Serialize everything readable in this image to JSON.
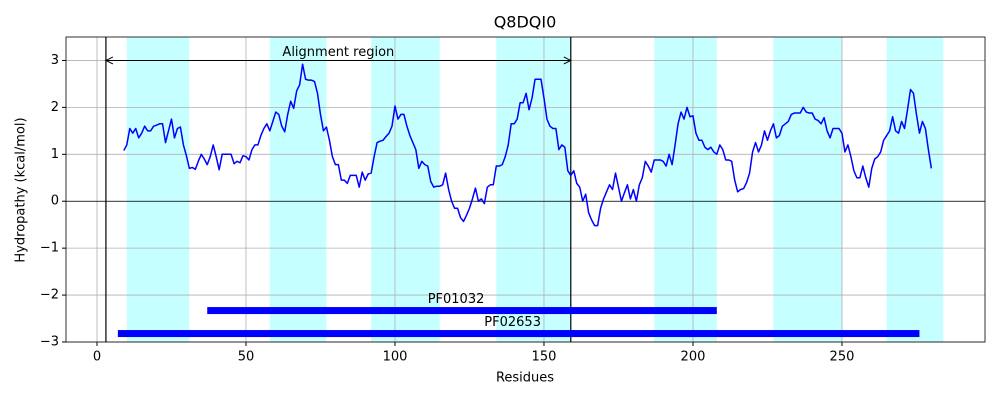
{
  "chart_data": {
    "type": "line",
    "title": "Q8DQI0",
    "x_label": "Residues",
    "y_label": "Hydropathy (kcal/mol)",
    "x": [
      9,
      10,
      11,
      12,
      13,
      14,
      15,
      16,
      17,
      18,
      19,
      20,
      21,
      22,
      23,
      24,
      25,
      26,
      27,
      28,
      29,
      30,
      31,
      32,
      33,
      34,
      35,
      36,
      37,
      38,
      39,
      40,
      41,
      42,
      43,
      44,
      45,
      46,
      47,
      48,
      49,
      50,
      51,
      52,
      53,
      54,
      55,
      56,
      57,
      58,
      59,
      60,
      61,
      62,
      63,
      64,
      65,
      66,
      67,
      68,
      69,
      70,
      71,
      72,
      73,
      74,
      75,
      76,
      77,
      78,
      79,
      80,
      81,
      82,
      83,
      84,
      85,
      86,
      87,
      88,
      89,
      90,
      91,
      92,
      93,
      94,
      95,
      96,
      97,
      98,
      99,
      100,
      101,
      102,
      103,
      104,
      105,
      106,
      107,
      108,
      109,
      110,
      111,
      112,
      113,
      114,
      115,
      116,
      117,
      118,
      119,
      120,
      121,
      122,
      123,
      124,
      125,
      126,
      127,
      128,
      129,
      130,
      131,
      132,
      133,
      134,
      135,
      136,
      137,
      138,
      139,
      140,
      141,
      142,
      143,
      144,
      145,
      146,
      147,
      148,
      149,
      150,
      151,
      152,
      153,
      154,
      155,
      156,
      157,
      158,
      159,
      160,
      161,
      162,
      163,
      164,
      165,
      166,
      167,
      168,
      169,
      170,
      171,
      172,
      173,
      174,
      175,
      176,
      177,
      178,
      179,
      180,
      181,
      182,
      183,
      184,
      185,
      186,
      187,
      188,
      189,
      190,
      191,
      192,
      193,
      194,
      195,
      196,
      197,
      198,
      199,
      200,
      201,
      202,
      203,
      204,
      205,
      206,
      207,
      208,
      209,
      210,
      211,
      212,
      213,
      214,
      215,
      216,
      217,
      218,
      219,
      220,
      221,
      222,
      223,
      224,
      225,
      226,
      227,
      228,
      229,
      230,
      231,
      232,
      233,
      234,
      235,
      236,
      237,
      238,
      239,
      240,
      241,
      242,
      243,
      244,
      245,
      246,
      247,
      248,
      249,
      250,
      251,
      252,
      253,
      254,
      255,
      256,
      257,
      258,
      259,
      260,
      261,
      262,
      263,
      264,
      265,
      266,
      267,
      268,
      269,
      270,
      271,
      272,
      273,
      274,
      275,
      276,
      277,
      278,
      279,
      280
    ],
    "series": [
      {
        "color": "#0000ff",
        "values": [
          1.08,
          1.2,
          1.55,
          1.45,
          1.55,
          1.35,
          1.45,
          1.6,
          1.5,
          1.5,
          1.6,
          1.62,
          1.65,
          1.65,
          1.25,
          1.5,
          1.75,
          1.35,
          1.55,
          1.58,
          1.2,
          0.97,
          0.7,
          0.72,
          0.68,
          0.85,
          1.0,
          0.9,
          0.78,
          0.95,
          1.2,
          0.95,
          0.67,
          1.0,
          1.0,
          1.0,
          1.0,
          0.8,
          0.85,
          0.82,
          0.97,
          0.95,
          0.88,
          1.1,
          1.2,
          1.2,
          1.4,
          1.55,
          1.65,
          1.5,
          1.7,
          1.9,
          1.85,
          1.6,
          1.48,
          1.85,
          2.13,
          1.98,
          2.35,
          2.48,
          2.92,
          2.6,
          2.58,
          2.58,
          2.55,
          2.3,
          1.85,
          1.5,
          1.58,
          1.3,
          0.95,
          0.78,
          0.78,
          0.45,
          0.45,
          0.38,
          0.55,
          0.55,
          0.55,
          0.3,
          0.62,
          0.45,
          0.58,
          0.6,
          0.95,
          1.25,
          1.28,
          1.3,
          1.38,
          1.45,
          1.6,
          2.03,
          1.75,
          1.85,
          1.85,
          1.6,
          1.4,
          1.25,
          1.1,
          0.7,
          0.85,
          0.78,
          0.75,
          0.42,
          0.3,
          0.32,
          0.32,
          0.35,
          0.6,
          0.25,
          0.0,
          -0.15,
          -0.15,
          -0.35,
          -0.43,
          -0.3,
          -0.15,
          0.05,
          0.28,
          0.0,
          0.05,
          -0.05,
          0.3,
          0.35,
          0.35,
          0.75,
          0.75,
          0.78,
          0.95,
          1.2,
          1.65,
          1.65,
          1.75,
          2.1,
          2.1,
          2.3,
          1.95,
          2.2,
          2.6,
          2.6,
          2.6,
          2.2,
          1.75,
          1.6,
          1.55,
          1.55,
          1.1,
          1.2,
          1.15,
          0.65,
          0.55,
          0.65,
          0.38,
          0.3,
          0.0,
          0.15,
          -0.25,
          -0.4,
          -0.52,
          -0.52,
          -0.15,
          0.05,
          0.2,
          0.35,
          0.25,
          0.6,
          0.3,
          0.0,
          0.18,
          0.35,
          0.05,
          0.25,
          0.0,
          0.35,
          0.5,
          0.85,
          0.75,
          0.62,
          0.88,
          0.88,
          0.88,
          0.85,
          0.75,
          1.0,
          0.78,
          1.2,
          1.65,
          1.9,
          1.75,
          2.0,
          1.8,
          1.82,
          1.45,
          1.3,
          1.3,
          1.15,
          1.1,
          1.15,
          1.05,
          1.0,
          1.2,
          1.1,
          0.88,
          0.88,
          0.85,
          0.45,
          0.2,
          0.25,
          0.27,
          0.4,
          0.6,
          1.05,
          1.25,
          1.05,
          1.2,
          1.5,
          1.3,
          1.5,
          1.65,
          1.35,
          1.4,
          1.6,
          1.65,
          1.7,
          1.85,
          1.88,
          1.88,
          1.88,
          2.0,
          1.9,
          1.88,
          1.88,
          1.75,
          1.72,
          1.65,
          1.78,
          1.5,
          1.35,
          1.55,
          1.55,
          1.55,
          1.45,
          1.05,
          1.2,
          0.95,
          0.65,
          0.5,
          0.5,
          0.75,
          0.5,
          0.3,
          0.7,
          0.9,
          0.95,
          1.05,
          1.3,
          1.4,
          1.5,
          1.8,
          1.5,
          1.45,
          1.7,
          1.55,
          1.95,
          2.38,
          2.3,
          1.85,
          1.45,
          1.7,
          1.55,
          1.1,
          0.7
        ]
      }
    ],
    "xlim": [
      -10.4,
      298
    ],
    "ylim": [
      -3,
      3.5
    ],
    "xticks": [
      0,
      50,
      100,
      150,
      200,
      250
    ],
    "yticks": [
      {
        "value": -3,
        "label": "−3"
      },
      {
        "value": -2,
        "label": "−2"
      },
      {
        "value": -1,
        "label": "−1"
      },
      0,
      1,
      2,
      3
    ],
    "grid": true,
    "hline": 0,
    "regions": [
      {
        "start": 10,
        "end": 31
      },
      {
        "start": 58,
        "end": 77
      },
      {
        "start": 92,
        "end": 115
      },
      {
        "start": 134,
        "end": 159
      },
      {
        "start": 187,
        "end": 208
      },
      {
        "start": 227,
        "end": 250
      },
      {
        "start": 265,
        "end": 284
      }
    ],
    "region_color": "#c6ffff",
    "vlines": [
      3,
      159
    ],
    "annotation": {
      "text": "Alignment region",
      "start": 3,
      "end": 159,
      "y": 3
    },
    "domains": [
      {
        "name": "PF01032",
        "start": 37,
        "end": 208,
        "y": -2.33
      },
      {
        "name": "PF02653",
        "start": 7,
        "end": 276,
        "y": -2.82
      }
    ],
    "domain_color": "#0000ff"
  }
}
